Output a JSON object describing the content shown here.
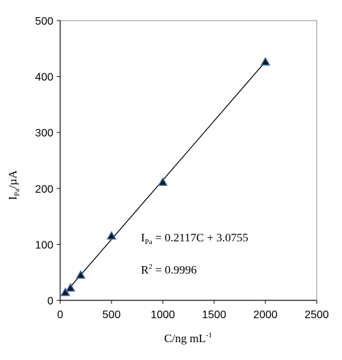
{
  "chart_data": {
    "type": "scatter",
    "title": "",
    "xlabel": {
      "base": "C/ng mL",
      "sup": "-1"
    },
    "ylabel": {
      "base": "I",
      "sub": "Pa",
      "tail": "/µA"
    },
    "xlim": [
      0,
      2500
    ],
    "ylim": [
      0,
      500
    ],
    "xticks": [
      0,
      500,
      1000,
      1500,
      2000,
      2500
    ],
    "yticks": [
      0,
      100,
      200,
      300,
      400,
      500
    ],
    "grid": false,
    "legend": "none",
    "series": [
      {
        "marker": "triangle",
        "marker_color": "#1a1a1a",
        "marker_edge_color": "#3b6fb6",
        "x": [
          50,
          100,
          200,
          500,
          1000,
          2000
        ],
        "y": [
          14,
          22,
          45,
          115,
          211,
          426
        ]
      }
    ],
    "trendline": {
      "slope": 0.2117,
      "intercept": 3.0755,
      "x_range": [
        50,
        2000
      ],
      "color": "#000000"
    },
    "annotations": {
      "equation": {
        "base": "I",
        "sub": "Pa",
        "tail": " = 0.2117C + 3.0755"
      },
      "r2": {
        "base": "R",
        "sup": "2",
        "tail": " = 0.9996"
      }
    }
  }
}
